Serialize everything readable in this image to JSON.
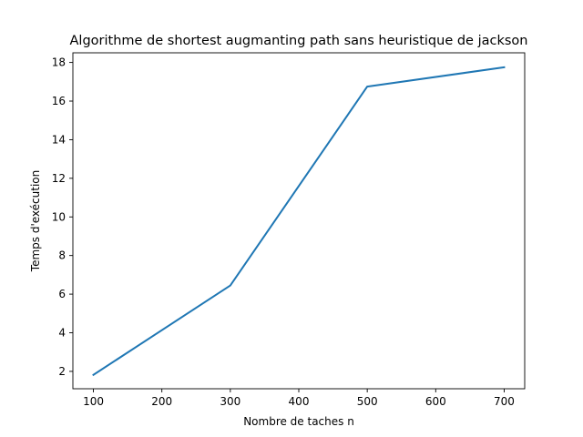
{
  "chart_data": {
    "type": "line",
    "title": "Algorithme de shortest augmanting path sans heuristique de jackson",
    "xlabel": "Nombre de taches n",
    "ylabel": "Temps d'exécution",
    "x": [
      100,
      300,
      500,
      700
    ],
    "series": [
      {
        "values": [
          1.82,
          6.45,
          16.75,
          17.75
        ],
        "color": "#1f77b4"
      }
    ],
    "xlim": [
      70,
      730
    ],
    "ylim": [
      1.1,
      18.5
    ],
    "xticks": [
      100,
      200,
      300,
      400,
      500,
      600,
      700
    ],
    "yticks": [
      2,
      4,
      6,
      8,
      10,
      12,
      14,
      16,
      18
    ],
    "grid": false,
    "legend": "none"
  }
}
